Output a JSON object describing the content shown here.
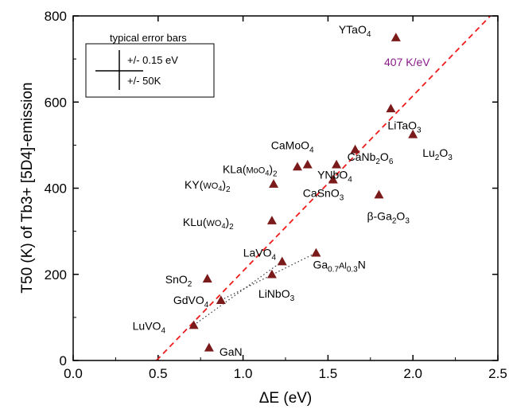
{
  "chart_data": {
    "type": "scatter",
    "xlabel": "ΔE (eV)",
    "ylabel": "T50 (K) of Tb3+ [5D4]-emission",
    "xlim": [
      0.0,
      2.5
    ],
    "ylim": [
      0,
      800
    ],
    "xticks": [
      0.0,
      0.5,
      1.0,
      1.5,
      2.0,
      2.5
    ],
    "yticks": [
      0,
      200,
      400,
      600,
      800
    ],
    "xtick_labels": [
      "0.0",
      "0.5",
      "1.0",
      "1.5",
      "2.0",
      "2.5"
    ],
    "ytick_labels": [
      "0",
      "200",
      "400",
      "600",
      "800"
    ],
    "grid": false,
    "marker_color": "#7a1a1a",
    "fit_color": "#ee1c1c",
    "fit_label_color": "#8a1a8a",
    "points": [
      {
        "x": 1.9,
        "y": 750,
        "label": "YTaO4"
      },
      {
        "x": 1.87,
        "y": 585,
        "label": "LiTaO3"
      },
      {
        "x": 2.0,
        "y": 525,
        "label": "Lu2O3"
      },
      {
        "x": 1.66,
        "y": 490,
        "label": "CaNb2O6"
      },
      {
        "x": 1.38,
        "y": 455,
        "label": "CaMoO4"
      },
      {
        "x": 1.32,
        "y": 450,
        "label": "KLa(MoO4)2"
      },
      {
        "x": 1.55,
        "y": 455,
        "label": "YNbO4"
      },
      {
        "x": 1.53,
        "y": 420,
        "label": "CaSnO3"
      },
      {
        "x": 1.18,
        "y": 410,
        "label": "KY(WO4)2"
      },
      {
        "x": 1.8,
        "y": 385,
        "label": "β-Ga2O3"
      },
      {
        "x": 1.17,
        "y": 325,
        "label": "KLu(WO4)2"
      },
      {
        "x": 1.43,
        "y": 250,
        "label": "Ga0.7Al0.3N"
      },
      {
        "x": 1.23,
        "y": 230,
        "label": "LaVO4"
      },
      {
        "x": 1.17,
        "y": 200,
        "label": "LiNbO3"
      },
      {
        "x": 0.79,
        "y": 190,
        "label": "SnO2"
      },
      {
        "x": 0.87,
        "y": 140,
        "label": "GdVO4"
      },
      {
        "x": 0.71,
        "y": 82,
        "label": "LuVO4"
      },
      {
        "x": 0.8,
        "y": 30,
        "label": "GaN"
      }
    ],
    "fit_line": {
      "x": [
        0.49,
        2.5
      ],
      "y": [
        0,
        818
      ],
      "label": "407 K/eV"
    },
    "dotted_links": [
      {
        "from": [
          0.71,
          82
        ],
        "to": [
          1.23,
          230
        ]
      },
      {
        "from": [
          0.87,
          140
        ],
        "to": [
          1.43,
          250
        ]
      }
    ],
    "legend": {
      "title": "typical error bars",
      "x_err": "+/- 0.15 eV",
      "y_err": "+/- 50K"
    }
  }
}
